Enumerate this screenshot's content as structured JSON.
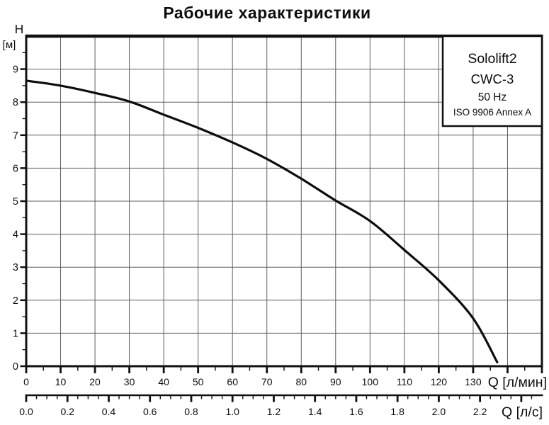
{
  "title": "Рабочие характеристики",
  "info_box": {
    "model": "Sololift2",
    "variant": "CWC-3",
    "frequency": "50 Hz",
    "standard": "ISO 9906 Annex A"
  },
  "y_axis": {
    "symbol": "H",
    "unit": "[м]",
    "tick_labels": [
      "9",
      "8",
      "7",
      "6",
      "5",
      "4",
      "3",
      "2",
      "1",
      "0"
    ],
    "min": 0,
    "max": 10,
    "major_step": 1,
    "minor_step": 0.5
  },
  "x_axis_lmin": {
    "label": "Q [л/мин]",
    "tick_labels": [
      "0",
      "10",
      "20",
      "30",
      "40",
      "50",
      "60",
      "70",
      "80",
      "90",
      "100",
      "110",
      "120",
      "130"
    ],
    "min": 0,
    "max": 150,
    "major_step": 10,
    "minor_step": 5
  },
  "x_axis_ls": {
    "label": "Q [л/с]",
    "tick_labels": [
      "0.0",
      "0.2",
      "0.4",
      "0.6",
      "0.8",
      "1.0",
      "1.2",
      "1.4",
      "1.6",
      "1.8",
      "2.0",
      "2.2"
    ],
    "min": 0,
    "max": 2.5,
    "major_step": 0.2,
    "minor_step": 0.05
  },
  "chart_data": {
    "type": "line",
    "title": "Рабочие характеристики",
    "xlabel_primary": "Q [л/мин]",
    "xlabel_secondary": "Q [л/с]",
    "ylabel": "H [м]",
    "xlim_lmin": [
      0,
      150
    ],
    "xlim_ls": [
      0,
      2.5
    ],
    "ylim_m": [
      0,
      10
    ],
    "grid": "on",
    "legend_position": "top-right-box",
    "series": [
      {
        "name": "Sololift2 CWC-3 50 Hz",
        "x_lmin": [
          0,
          10,
          20,
          30,
          40,
          50,
          60,
          70,
          80,
          90,
          100,
          110,
          120,
          130,
          137
        ],
        "h_m": [
          8.65,
          8.5,
          8.28,
          8.02,
          7.62,
          7.22,
          6.78,
          6.28,
          5.68,
          5.02,
          4.4,
          3.52,
          2.6,
          1.45,
          0.12
        ]
      }
    ]
  },
  "colors": {
    "curve": "#0d0d0d",
    "grid": "#5f5f5f",
    "frame": "#101010",
    "background": "#ffffff"
  }
}
